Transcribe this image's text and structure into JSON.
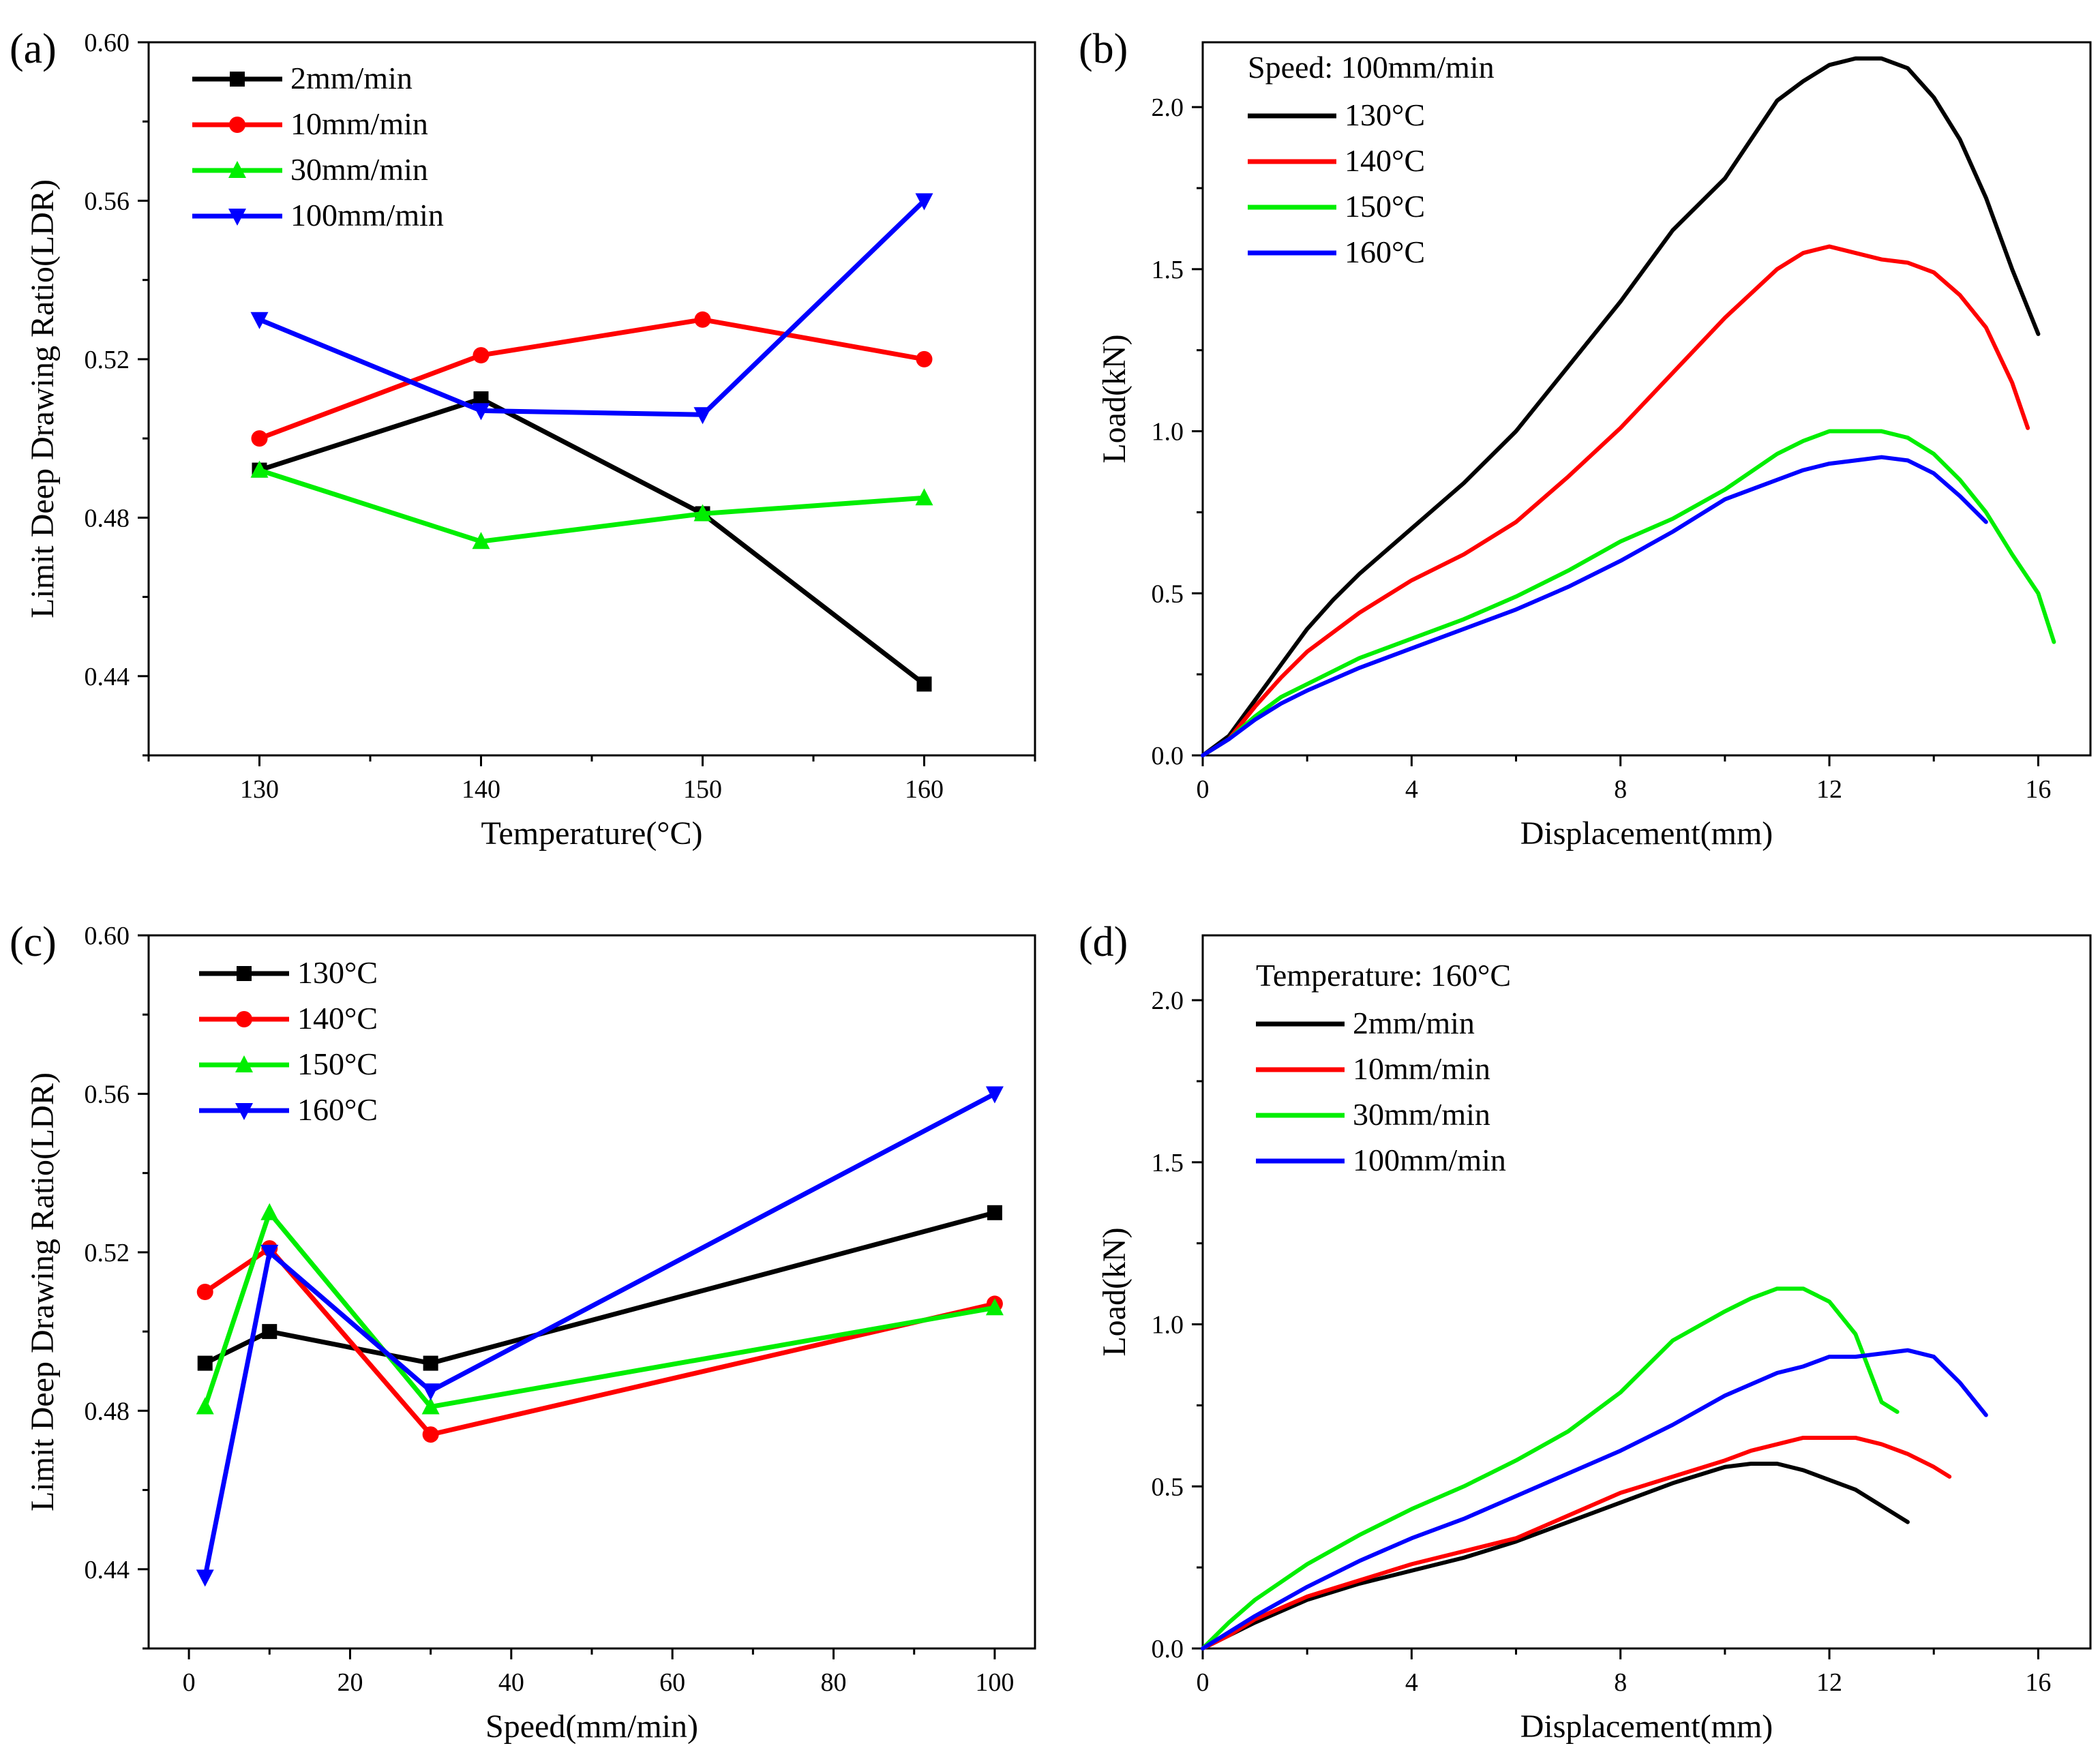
{
  "chart_data": [
    {
      "panel": "(a)",
      "type": "line",
      "xlabel": "Temperature(°C)",
      "ylabel": "Limit Deep Drawing Ratio(LDR)",
      "xlim": [
        125,
        165
      ],
      "ylim": [
        0.42,
        0.6
      ],
      "xticks": [
        130,
        140,
        150,
        160
      ],
      "xtick_labels": [
        "130",
        "140",
        "150",
        "160"
      ],
      "yticks": [
        0.44,
        0.48,
        0.52,
        0.56,
        0.6
      ],
      "ytick_labels": [
        "0.44",
        "0.48",
        "0.52",
        "0.56",
        "0.60"
      ],
      "legend_position": "top-left",
      "legend_title": "",
      "series": [
        {
          "name": "2mm/min",
          "color": "#000000",
          "marker": "square",
          "x": [
            130,
            140,
            150,
            160
          ],
          "y": [
            0.492,
            0.51,
            0.481,
            0.438
          ]
        },
        {
          "name": "10mm/min",
          "color": "#ff0000",
          "marker": "circle",
          "x": [
            130,
            140,
            150,
            160
          ],
          "y": [
            0.5,
            0.521,
            0.53,
            0.52
          ]
        },
        {
          "name": "30mm/min",
          "color": "#00ee00",
          "marker": "triangle-up",
          "x": [
            130,
            140,
            150,
            160
          ],
          "y": [
            0.492,
            0.474,
            0.481,
            0.485
          ]
        },
        {
          "name": "100mm/min",
          "color": "#0000ff",
          "marker": "triangle-down",
          "x": [
            130,
            140,
            150,
            160
          ],
          "y": [
            0.53,
            0.507,
            0.506,
            0.56
          ]
        }
      ]
    },
    {
      "panel": "(b)",
      "type": "line",
      "xlabel": "Displacement(mm)",
      "ylabel": "Load(kN)",
      "xlim": [
        0,
        17
      ],
      "ylim": [
        0,
        2.2
      ],
      "xticks": [
        0,
        4,
        8,
        12,
        16
      ],
      "xtick_labels": [
        "0",
        "4",
        "8",
        "12",
        "16"
      ],
      "yticks": [
        0,
        0.5,
        1.0,
        1.5,
        2.0
      ],
      "ytick_labels": [
        "0.0",
        "0.5",
        "1.0",
        "1.5",
        "2.0"
      ],
      "legend_position": "top-left",
      "legend_title": "Speed: 100mm/min",
      "series": [
        {
          "name": "130°C",
          "color": "#000000",
          "marker": "none",
          "x": [
            0,
            0.5,
            1,
            1.5,
            2,
            2.5,
            3,
            4,
            5,
            6,
            7,
            8,
            9,
            10,
            11,
            11.5,
            12,
            12.5,
            13,
            13.5,
            14,
            14.5,
            15,
            15.5,
            16
          ],
          "y": [
            0,
            0.06,
            0.17,
            0.28,
            0.39,
            0.48,
            0.56,
            0.7,
            0.84,
            1.0,
            1.2,
            1.4,
            1.62,
            1.78,
            2.02,
            2.08,
            2.13,
            2.15,
            2.15,
            2.12,
            2.03,
            1.9,
            1.72,
            1.5,
            1.3
          ]
        },
        {
          "name": "140°C",
          "color": "#ff0000",
          "marker": "none",
          "x": [
            0,
            0.5,
            1,
            1.5,
            2,
            3,
            4,
            5,
            6,
            7,
            8,
            9,
            10,
            11,
            11.5,
            12,
            12.5,
            13,
            13.5,
            14,
            14.5,
            15,
            15.5,
            15.8
          ],
          "y": [
            0,
            0.05,
            0.15,
            0.24,
            0.32,
            0.44,
            0.54,
            0.62,
            0.72,
            0.86,
            1.01,
            1.18,
            1.35,
            1.5,
            1.55,
            1.57,
            1.55,
            1.53,
            1.52,
            1.49,
            1.42,
            1.32,
            1.15,
            1.01
          ]
        },
        {
          "name": "150°C",
          "color": "#00ee00",
          "marker": "none",
          "x": [
            0,
            0.5,
            1,
            1.5,
            2,
            3,
            4,
            5,
            6,
            7,
            8,
            9,
            10,
            11,
            11.5,
            12,
            12.5,
            13,
            13.5,
            14,
            14.5,
            15,
            15.5,
            16,
            16.3
          ],
          "y": [
            0,
            0.05,
            0.12,
            0.18,
            0.22,
            0.3,
            0.36,
            0.42,
            0.49,
            0.57,
            0.66,
            0.73,
            0.82,
            0.93,
            0.97,
            1.0,
            1.0,
            1.0,
            0.98,
            0.93,
            0.85,
            0.75,
            0.62,
            0.5,
            0.35
          ]
        },
        {
          "name": "160°C",
          "color": "#0000ff",
          "marker": "none",
          "x": [
            0,
            0.5,
            1,
            1.5,
            2,
            3,
            4,
            5,
            6,
            7,
            8,
            9,
            10,
            11,
            11.5,
            12,
            12.5,
            13,
            13.5,
            14,
            14.5,
            15
          ],
          "y": [
            0,
            0.05,
            0.11,
            0.16,
            0.2,
            0.27,
            0.33,
            0.39,
            0.45,
            0.52,
            0.6,
            0.69,
            0.79,
            0.85,
            0.88,
            0.9,
            0.91,
            0.92,
            0.91,
            0.87,
            0.8,
            0.72
          ]
        }
      ]
    },
    {
      "panel": "(c)",
      "type": "line",
      "xlabel": "Speed(mm/min)",
      "ylabel": "Limit Deep Drawing Ratio(LDR)",
      "xlim": [
        -5,
        105
      ],
      "ylim": [
        0.42,
        0.6
      ],
      "xticks": [
        0,
        20,
        40,
        60,
        80,
        100
      ],
      "xtick_labels": [
        "0",
        "20",
        "40",
        "60",
        "80",
        "100"
      ],
      "yticks": [
        0.44,
        0.48,
        0.52,
        0.56,
        0.6
      ],
      "ytick_labels": [
        "0.44",
        "0.48",
        "0.52",
        "0.56",
        "0.60"
      ],
      "legend_position": "top-left",
      "legend_title": "",
      "series": [
        {
          "name": "130°C",
          "color": "#000000",
          "marker": "square",
          "x": [
            2,
            10,
            30,
            100
          ],
          "y": [
            0.492,
            0.5,
            0.492,
            0.53
          ]
        },
        {
          "name": "140°C",
          "color": "#ff0000",
          "marker": "circle",
          "x": [
            2,
            10,
            30,
            100
          ],
          "y": [
            0.51,
            0.521,
            0.474,
            0.507
          ]
        },
        {
          "name": "150°C",
          "color": "#00ee00",
          "marker": "triangle-up",
          "x": [
            2,
            10,
            30,
            100
          ],
          "y": [
            0.481,
            0.53,
            0.481,
            0.506
          ]
        },
        {
          "name": "160°C",
          "color": "#0000ff",
          "marker": "triangle-down",
          "x": [
            2,
            10,
            30,
            100
          ],
          "y": [
            0.438,
            0.52,
            0.485,
            0.56
          ]
        }
      ]
    },
    {
      "panel": "(d)",
      "type": "line",
      "xlabel": "Displacement(mm)",
      "ylabel": "Load(kN)",
      "xlim": [
        0,
        17
      ],
      "ylim": [
        0,
        2.2
      ],
      "xticks": [
        0,
        4,
        8,
        12,
        16
      ],
      "xtick_labels": [
        "0",
        "4",
        "8",
        "12",
        "16"
      ],
      "yticks": [
        0,
        0.5,
        1.0,
        1.5,
        2.0
      ],
      "ytick_labels": [
        "0.0",
        "0.5",
        "1.0",
        "1.5",
        "2.0"
      ],
      "legend_position": "top-left",
      "legend_title": "Temperature: 160°C",
      "series": [
        {
          "name": "2mm/min",
          "color": "#000000",
          "marker": "none",
          "x": [
            0,
            0.5,
            1,
            2,
            3,
            4,
            5,
            6,
            7,
            8,
            9,
            10,
            10.5,
            11,
            11.5,
            12,
            12.5,
            13,
            13.5
          ],
          "y": [
            0,
            0.04,
            0.08,
            0.15,
            0.2,
            0.24,
            0.28,
            0.33,
            0.39,
            0.45,
            0.51,
            0.56,
            0.57,
            0.57,
            0.55,
            0.52,
            0.49,
            0.44,
            0.39
          ]
        },
        {
          "name": "10mm/min",
          "color": "#ff0000",
          "marker": "none",
          "x": [
            0,
            0.5,
            1,
            2,
            3,
            4,
            5,
            6,
            7,
            8,
            9,
            10,
            10.5,
            11,
            11.5,
            12,
            12.5,
            13,
            13.5,
            14,
            14.3
          ],
          "y": [
            0,
            0.04,
            0.09,
            0.16,
            0.21,
            0.26,
            0.3,
            0.34,
            0.41,
            0.48,
            0.53,
            0.58,
            0.61,
            0.63,
            0.65,
            0.65,
            0.65,
            0.63,
            0.6,
            0.56,
            0.53
          ]
        },
        {
          "name": "30mm/min",
          "color": "#00ee00",
          "marker": "none",
          "x": [
            0,
            0.5,
            1,
            2,
            3,
            4,
            5,
            6,
            7,
            8,
            9,
            10,
            10.5,
            11,
            11.5,
            12,
            12.5,
            13,
            13.3
          ],
          "y": [
            0,
            0.08,
            0.15,
            0.26,
            0.35,
            0.43,
            0.5,
            0.58,
            0.67,
            0.79,
            0.95,
            1.04,
            1.08,
            1.11,
            1.11,
            1.07,
            0.97,
            0.76,
            0.73
          ]
        },
        {
          "name": "100mm/min",
          "color": "#0000ff",
          "marker": "none",
          "x": [
            0,
            0.5,
            1,
            2,
            3,
            4,
            5,
            6,
            7,
            8,
            9,
            10,
            11,
            11.5,
            12,
            12.5,
            13,
            13.5,
            14,
            14.5,
            15
          ],
          "y": [
            0,
            0.05,
            0.1,
            0.19,
            0.27,
            0.34,
            0.4,
            0.47,
            0.54,
            0.61,
            0.69,
            0.78,
            0.85,
            0.87,
            0.9,
            0.9,
            0.91,
            0.92,
            0.9,
            0.82,
            0.72
          ]
        }
      ]
    }
  ]
}
